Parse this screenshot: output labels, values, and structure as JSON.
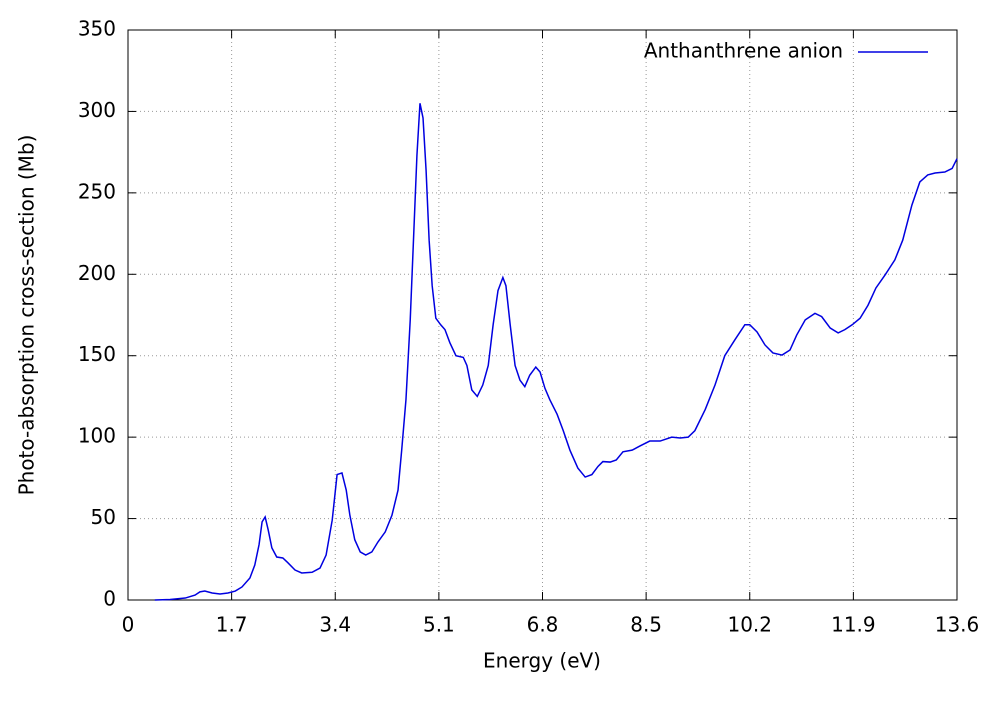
{
  "chart_data": {
    "type": "line",
    "xlabel": "Energy (eV)",
    "ylabel": "Photo-absorption cross-section (Mb)",
    "xlim": [
      0,
      13.6
    ],
    "ylim": [
      0,
      350
    ],
    "xticks": [
      0,
      1.7,
      3.4,
      5.1,
      6.8,
      8.5,
      10.2,
      11.9,
      13.6
    ],
    "yticks": [
      0,
      50,
      100,
      150,
      200,
      250,
      300,
      350
    ],
    "grid": true,
    "legend": "upper right",
    "x": [
      0.44,
      0.69,
      0.94,
      1.1,
      1.18,
      1.26,
      1.38,
      1.51,
      1.64,
      1.76,
      1.87,
      2.0,
      2.08,
      2.15,
      2.2,
      2.25,
      2.3,
      2.36,
      2.44,
      2.54,
      2.62,
      2.74,
      2.85,
      3.02,
      3.15,
      3.25,
      3.35,
      3.43,
      3.51,
      3.58,
      3.64,
      3.72,
      3.81,
      3.9,
      4.0,
      4.1,
      4.22,
      4.33,
      4.43,
      4.49,
      4.56,
      4.63,
      4.69,
      4.74,
      4.79,
      4.84,
      4.89,
      4.94,
      4.99,
      5.05,
      5.13,
      5.2,
      5.28,
      5.38,
      5.5,
      5.56,
      5.64,
      5.73,
      5.82,
      5.91,
      5.99,
      6.07,
      6.15,
      6.2,
      6.27,
      6.35,
      6.43,
      6.51,
      6.59,
      6.69,
      6.76,
      6.84,
      6.92,
      7.04,
      7.14,
      7.25,
      7.38,
      7.5,
      7.61,
      7.71,
      7.79,
      7.91,
      8.01,
      8.12,
      8.27,
      8.4,
      8.56,
      8.73,
      8.92,
      9.06,
      9.19,
      9.3,
      9.47,
      9.63,
      9.79,
      9.96,
      10.12,
      10.2,
      10.32,
      10.45,
      10.58,
      10.73,
      10.86,
      10.97,
      11.11,
      11.27,
      11.38,
      11.52,
      11.65,
      11.76,
      11.88,
      12.01,
      12.14,
      12.27,
      12.42,
      12.58,
      12.71,
      12.86,
      12.99,
      13.12,
      13.24,
      13.4,
      13.52,
      13.6
    ],
    "series": [
      {
        "name": "Anthanthrene anion",
        "color": "#0000e0",
        "values": [
          0,
          0.3,
          1.2,
          3,
          5,
          5.5,
          4.3,
          3.7,
          4.3,
          5.5,
          8,
          13.5,
          21.5,
          34,
          48,
          51,
          43,
          32,
          26.4,
          25.8,
          23,
          18.4,
          16.6,
          17,
          19.6,
          27.6,
          49,
          77,
          78,
          67.5,
          52,
          37,
          29.5,
          27.6,
          29.5,
          35.6,
          41.8,
          52,
          67.5,
          92,
          123,
          172,
          227,
          273,
          305,
          296,
          264,
          221,
          193,
          173,
          169,
          166,
          158,
          150,
          149,
          144,
          129,
          125,
          132,
          144,
          169,
          190,
          198,
          193,
          169,
          144,
          135,
          131,
          138,
          143,
          140,
          130,
          123,
          114,
          104,
          92,
          81,
          75.5,
          77,
          82,
          85,
          84.7,
          86,
          91,
          92,
          94.6,
          97.6,
          97.6,
          100,
          99.5,
          100,
          104,
          117,
          132,
          150,
          160,
          169,
          169,
          164.6,
          156.6,
          151.7,
          150.4,
          153.5,
          162.7,
          172,
          176,
          174,
          167,
          164,
          166,
          169,
          173,
          181,
          191.6,
          199.6,
          208.8,
          221,
          242.5,
          256.7,
          261,
          262.2,
          262.8,
          265,
          271
        ]
      }
    ]
  }
}
